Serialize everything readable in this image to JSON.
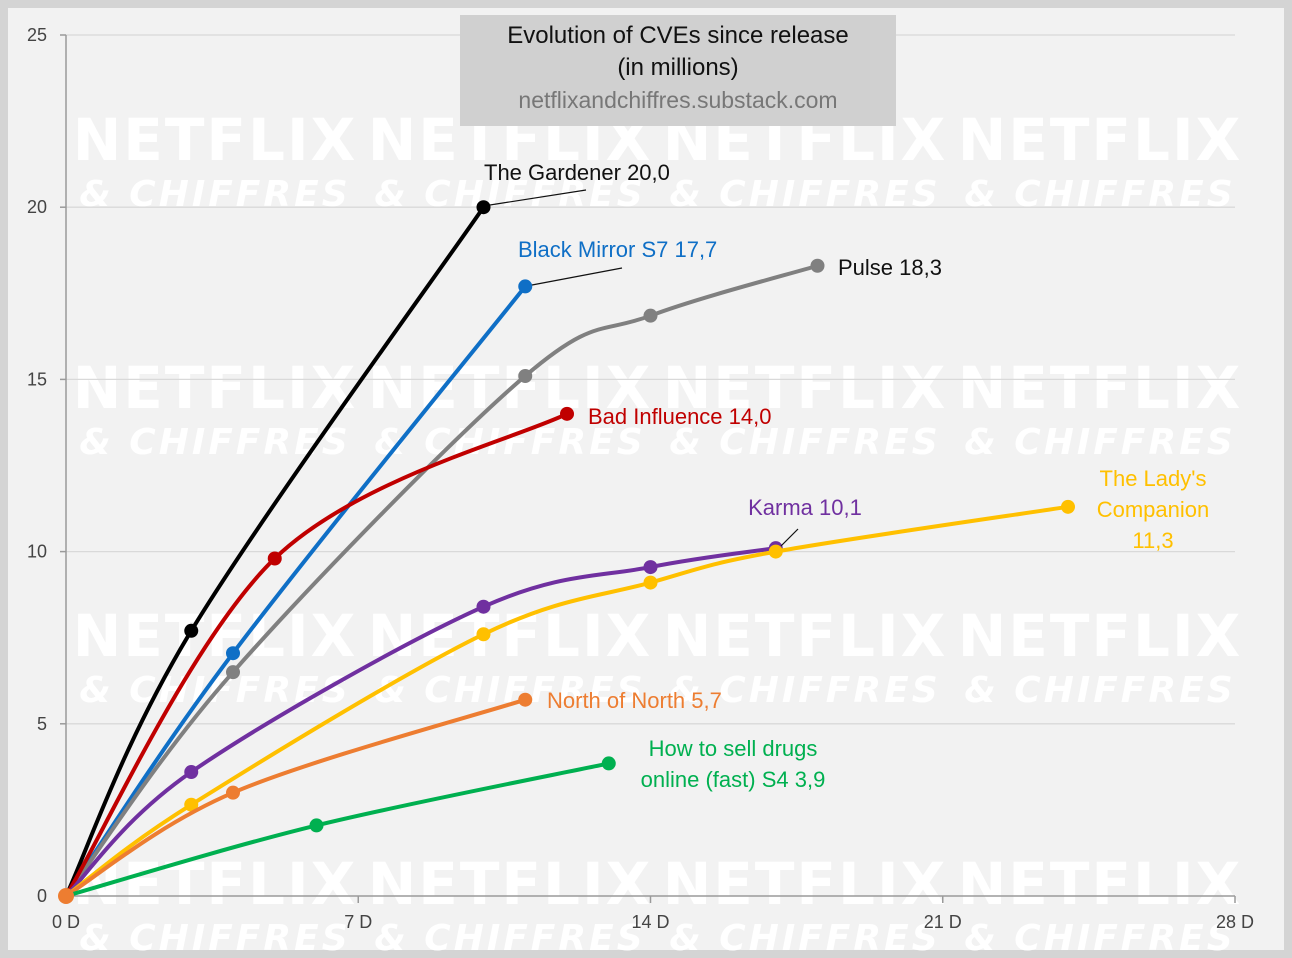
{
  "chart_data": {
    "type": "line",
    "title": "Evolution of CVEs since release",
    "subtitle": "(in millions)",
    "source": "netflixandchiffres.substack.com",
    "watermark": {
      "main": "NETFLIX",
      "sub": "& CHIFFRES"
    },
    "xlabel": "",
    "ylabel": "",
    "xlim": [
      0,
      28
    ],
    "ylim": [
      0,
      25
    ],
    "x_ticks": [
      0,
      7,
      14,
      21,
      28
    ],
    "x_tick_labels": [
      "0 D",
      "7 D",
      "14 D",
      "21 D",
      "28 D"
    ],
    "y_ticks": [
      0,
      5,
      10,
      15,
      20,
      25
    ],
    "y_tick_labels": [
      "0",
      "5",
      "10",
      "15",
      "20",
      "25"
    ],
    "grid": true,
    "legend": "none",
    "series": [
      {
        "name": "The Gardener",
        "color": "#000000",
        "label_lines": [
          "The Gardener 20,0"
        ],
        "points": [
          [
            0,
            0
          ],
          [
            3,
            7.7
          ],
          [
            10,
            20.0
          ]
        ]
      },
      {
        "name": "Black Mirror S7",
        "color": "#0f6fc6",
        "label_lines": [
          "Black Mirror S7 17,7"
        ],
        "points": [
          [
            0,
            0
          ],
          [
            4,
            7.05
          ],
          [
            11,
            17.7
          ]
        ]
      },
      {
        "name": "Pulse",
        "color": "#808080",
        "label_lines": [
          "Pulse 18,3"
        ],
        "points": [
          [
            0,
            0
          ],
          [
            4,
            6.5
          ],
          [
            11,
            15.1
          ],
          [
            14,
            16.85
          ],
          [
            18,
            18.3
          ]
        ]
      },
      {
        "name": "Bad Influence",
        "color": "#c00000",
        "label_lines": [
          "Bad Influence 14,0"
        ],
        "points": [
          [
            0,
            0
          ],
          [
            5,
            9.8
          ],
          [
            12,
            14.0
          ]
        ]
      },
      {
        "name": "Karma",
        "color": "#7030a0",
        "label_lines": [
          "Karma 10,1"
        ],
        "points": [
          [
            0,
            0
          ],
          [
            3,
            3.6
          ],
          [
            10,
            8.4
          ],
          [
            14,
            9.55
          ],
          [
            17,
            10.1
          ]
        ]
      },
      {
        "name": "The Lady's Companion",
        "color": "#ffc000",
        "label_lines": [
          "The Lady's",
          "Companion",
          "11,3"
        ],
        "points": [
          [
            0,
            0
          ],
          [
            3,
            2.65
          ],
          [
            10,
            7.6
          ],
          [
            14,
            9.1
          ],
          [
            17,
            10.0
          ],
          [
            24,
            11.3
          ]
        ]
      },
      {
        "name": "North of North",
        "color": "#ed7d31",
        "label_lines": [
          "North of North 5,7"
        ],
        "points": [
          [
            0,
            0
          ],
          [
            4,
            3.0
          ],
          [
            11,
            5.7
          ]
        ]
      },
      {
        "name": "How to sell drugs online (fast) S4",
        "color": "#00b050",
        "label_lines": [
          "How to sell drugs",
          "online (fast) S4 3,9"
        ],
        "points": [
          [
            0,
            0
          ],
          [
            6,
            2.05
          ],
          [
            13,
            3.85
          ]
        ]
      }
    ]
  }
}
